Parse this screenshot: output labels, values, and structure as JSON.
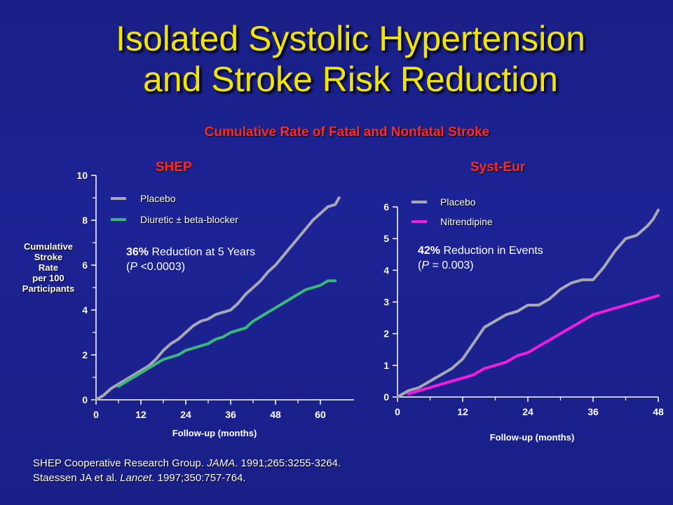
{
  "slide": {
    "title_line1": "Isolated Systolic Hypertension",
    "title_line2": "and Stroke Risk Reduction",
    "subtitle": "Cumulative Rate of Fatal and Nonfatal Stroke"
  },
  "references": [
    {
      "pre": "SHEP Cooperative Research Group. ",
      "journal": "JAMA",
      "post": ". 1991;265:3255-3264."
    },
    {
      "pre": "Staessen JA et al. ",
      "journal": "Lancet",
      "post": ". 1997;350:757-764."
    }
  ],
  "colors": {
    "placebo": "#a8a8b4",
    "diuretic": "#3ab87a",
    "nitrendipine": "#f21ce0",
    "axis": "#ffffff"
  },
  "chart_data": [
    {
      "type": "line",
      "title": "SHEP",
      "xlabel": "Follow-up (months)",
      "ylabel": [
        "Cumulative",
        "Stroke",
        "Rate",
        "per 100",
        "Participants"
      ],
      "xticks": [
        0,
        12,
        24,
        36,
        48,
        60
      ],
      "yticks": [
        0,
        2,
        4,
        6,
        8,
        10
      ],
      "xlim": [
        0,
        66
      ],
      "ylim": [
        0,
        10
      ],
      "annotation": {
        "bold": "36%",
        "text": " Reduction at 5 Years",
        "p_italic": "P",
        "p_text": " <0.0003",
        "open": "(",
        "close": ")"
      },
      "series": [
        {
          "name": "Placebo",
          "color": "#a8a8b4",
          "x": [
            0,
            2,
            4,
            6,
            8,
            10,
            12,
            14,
            16,
            18,
            20,
            22,
            24,
            26,
            28,
            30,
            32,
            34,
            36,
            38,
            40,
            42,
            44,
            46,
            48,
            50,
            52,
            54,
            56,
            58,
            60,
            62,
            64,
            65
          ],
          "y": [
            0,
            0.2,
            0.5,
            0.7,
            0.9,
            1.1,
            1.3,
            1.5,
            1.8,
            2.2,
            2.5,
            2.7,
            3.0,
            3.3,
            3.5,
            3.6,
            3.8,
            3.9,
            4.0,
            4.3,
            4.7,
            5.0,
            5.3,
            5.7,
            6.0,
            6.4,
            6.8,
            7.2,
            7.6,
            8.0,
            8.3,
            8.6,
            8.7,
            9.0
          ]
        },
        {
          "name": "Diuretic ± beta-blocker",
          "color": "#3ab87a",
          "x": [
            6,
            8,
            10,
            12,
            14,
            16,
            18,
            20,
            22,
            24,
            26,
            28,
            30,
            32,
            34,
            36,
            38,
            40,
            42,
            44,
            46,
            48,
            50,
            52,
            54,
            56,
            58,
            60,
            62,
            64
          ],
          "y": [
            0.6,
            0.8,
            1.0,
            1.2,
            1.4,
            1.6,
            1.8,
            1.9,
            2.0,
            2.2,
            2.3,
            2.4,
            2.5,
            2.7,
            2.8,
            3.0,
            3.1,
            3.2,
            3.5,
            3.7,
            3.9,
            4.1,
            4.3,
            4.5,
            4.7,
            4.9,
            5.0,
            5.1,
            5.3,
            5.3
          ]
        }
      ]
    },
    {
      "type": "line",
      "title": "Syst-Eur",
      "xlabel": "Follow-up (months)",
      "xticks": [
        0,
        12,
        24,
        36,
        48
      ],
      "yticks": [
        0,
        1,
        2,
        3,
        4,
        5,
        6
      ],
      "xlim": [
        0,
        48
      ],
      "ylim": [
        0,
        6
      ],
      "annotation": {
        "bold": "42%",
        "text": " Reduction in Events",
        "p_italic": "P",
        "p_text": " = 0.003",
        "open": "(",
        "close": ")"
      },
      "series": [
        {
          "name": "Placebo",
          "color": "#a8a8b4",
          "x": [
            0,
            2,
            4,
            6,
            8,
            10,
            12,
            14,
            16,
            18,
            20,
            22,
            24,
            26,
            28,
            30,
            32,
            34,
            36,
            38,
            40,
            42,
            44,
            46,
            47,
            48
          ],
          "y": [
            0,
            0.2,
            0.3,
            0.5,
            0.7,
            0.9,
            1.2,
            1.7,
            2.2,
            2.4,
            2.6,
            2.7,
            2.9,
            2.9,
            3.1,
            3.4,
            3.6,
            3.7,
            3.7,
            4.1,
            4.6,
            5.0,
            5.1,
            5.4,
            5.6,
            5.9
          ]
        },
        {
          "name": "Nitrendipine",
          "color": "#f21ce0",
          "x": [
            2,
            4,
            6,
            8,
            10,
            12,
            14,
            16,
            18,
            20,
            22,
            24,
            26,
            28,
            30,
            32,
            34,
            36,
            38,
            40,
            42,
            44,
            46,
            48
          ],
          "y": [
            0.1,
            0.2,
            0.3,
            0.4,
            0.5,
            0.6,
            0.7,
            0.9,
            1.0,
            1.1,
            1.3,
            1.4,
            1.6,
            1.8,
            2.0,
            2.2,
            2.4,
            2.6,
            2.7,
            2.8,
            2.9,
            3.0,
            3.1,
            3.2
          ]
        }
      ]
    }
  ]
}
